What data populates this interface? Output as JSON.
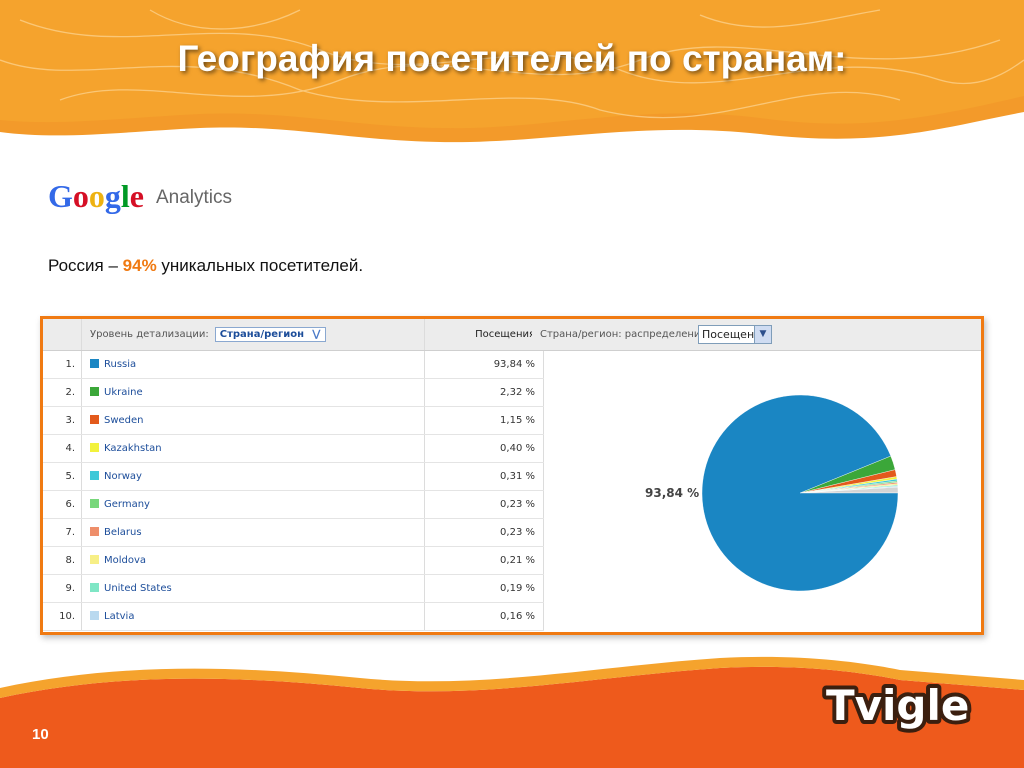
{
  "slide": {
    "title": "География посетителей по странам:",
    "subtitle_prefix": "Россия – ",
    "subtitle_highlight": "94%",
    "subtitle_suffix": " уникальных посетителей.",
    "page_number": "10",
    "accent_color": "#f07a12",
    "footer_color": "#ee5a1c"
  },
  "logos": {
    "google_analytics": {
      "google": "Google",
      "analytics": "Analytics"
    },
    "tvigle": "Tvigle"
  },
  "table": {
    "detail_label": "Уровень детализации:",
    "detail_value": "Страна/регион",
    "column_visits": "Посещения",
    "distribution_label": "Страна/регион: распределение",
    "distribution_select": "Посещения"
  },
  "chart_data": {
    "type": "pie",
    "categories": [
      "Russia",
      "Ukraine",
      "Sweden",
      "Kazakhstan",
      "Norway",
      "Germany",
      "Belarus",
      "Moldova",
      "United States",
      "Latvia"
    ],
    "values": [
      93.84,
      2.32,
      1.15,
      0.4,
      0.31,
      0.23,
      0.23,
      0.21,
      0.19,
      0.16
    ],
    "value_labels": [
      "93,84 %",
      "2,32 %",
      "1,15 %",
      "0,40 %",
      "0,31 %",
      "0,23 %",
      "0,23 %",
      "0,21 %",
      "0,19 %",
      "0,16 %"
    ],
    "indices": [
      "1.",
      "2.",
      "3.",
      "4.",
      "5.",
      "6.",
      "7.",
      "8.",
      "9.",
      "10."
    ],
    "colors": [
      "#1a86c3",
      "#3ba739",
      "#e35a1c",
      "#f2f23c",
      "#3fc8d8",
      "#77d77a",
      "#ee8e6a",
      "#f7ef86",
      "#7fe6c5",
      "#b9d9ef"
    ],
    "pie_label": "93,84  %",
    "remainder_color": "#d4d4d4"
  }
}
